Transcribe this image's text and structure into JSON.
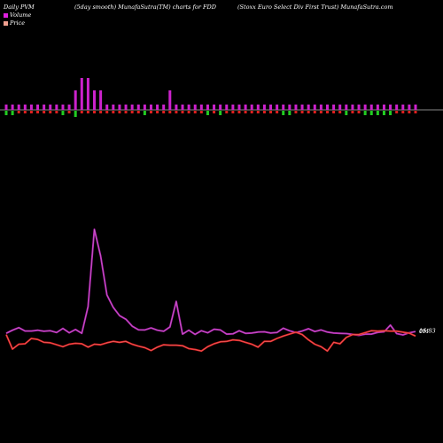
{
  "header": {
    "left": "Daily PVM",
    "center_left": "(5day smooth) MunafaSutra(TM) charts for FDD",
    "center_right": "(Stoxx Euro  Select Div   First Trust) MunafaSutra.com"
  },
  "legend": {
    "volume_label": "Volume",
    "price_label": "Price",
    "volume_color": "#e020e0",
    "price_color": "#f0a090"
  },
  "colors": {
    "background": "#000000",
    "volume_line": "#b020b0",
    "price_line": "#e02020",
    "bar_up": "#cc22cc",
    "bar_down_red": "#e02020",
    "bar_down_green": "#22cc22",
    "baseline": "#888888"
  },
  "labels": {
    "volume_end": "0M",
    "price_end": "16.83"
  },
  "chart_data": {
    "type": "line",
    "title": "(5day smooth) MunafaSutra(TM) charts for FDD",
    "x_count": 66,
    "volume_bars": [
      [
        1,
        1
      ],
      [
        1,
        1
      ],
      [
        1,
        0
      ],
      [
        1,
        0
      ],
      [
        1,
        0
      ],
      [
        1,
        0
      ],
      [
        1,
        0
      ],
      [
        1,
        0
      ],
      [
        1,
        0
      ],
      [
        1,
        1
      ],
      [
        1,
        0
      ],
      [
        2,
        3
      ],
      [
        3,
        0
      ],
      [
        3,
        0
      ],
      [
        2,
        0
      ],
      [
        2,
        0
      ],
      [
        1,
        0
      ],
      [
        1,
        0
      ],
      [
        1,
        0
      ],
      [
        1,
        0
      ],
      [
        1,
        0
      ],
      [
        1,
        0
      ],
      [
        1,
        1
      ],
      [
        1,
        0
      ],
      [
        1,
        0
      ],
      [
        1,
        0
      ],
      [
        2,
        0
      ],
      [
        1,
        0
      ],
      [
        1,
        0
      ],
      [
        1,
        0
      ],
      [
        1,
        0
      ],
      [
        1,
        0
      ],
      [
        1,
        1
      ],
      [
        1,
        0
      ],
      [
        1,
        1
      ],
      [
        1,
        0
      ],
      [
        1,
        0
      ],
      [
        1,
        0
      ],
      [
        1,
        0
      ],
      [
        1,
        0
      ],
      [
        1,
        0
      ],
      [
        1,
        0
      ],
      [
        1,
        0
      ],
      [
        1,
        0
      ],
      [
        1,
        1
      ],
      [
        1,
        1
      ],
      [
        1,
        0
      ],
      [
        1,
        0
      ],
      [
        1,
        0
      ],
      [
        1,
        0
      ],
      [
        1,
        0
      ],
      [
        1,
        0
      ],
      [
        1,
        0
      ],
      [
        1,
        0
      ],
      [
        1,
        1
      ],
      [
        1,
        0
      ],
      [
        1,
        0
      ],
      [
        1,
        1
      ],
      [
        1,
        1
      ],
      [
        1,
        1
      ],
      [
        1,
        1
      ],
      [
        1,
        1
      ],
      [
        1,
        0
      ],
      [
        1,
        0
      ],
      [
        1,
        0
      ],
      [
        1,
        0
      ]
    ],
    "series": [
      {
        "name": "Volume",
        "values": [
          0.43,
          0.55,
          0.65,
          0.52,
          0.52,
          0.55,
          0.51,
          0.53,
          0.46,
          0.62,
          0.45,
          0.58,
          0.43,
          1.47,
          4.47,
          3.43,
          1.92,
          1.44,
          1.12,
          0.98,
          0.71,
          0.57,
          0.56,
          0.64,
          0.55,
          0.51,
          0.68,
          1.67,
          0.4,
          0.55,
          0.39,
          0.53,
          0.45,
          0.59,
          0.56,
          0.4,
          0.41,
          0.53,
          0.43,
          0.44,
          0.48,
          0.49,
          0.44,
          0.46,
          0.63,
          0.53,
          0.46,
          0.52,
          0.61,
          0.5,
          0.56,
          0.48,
          0.44,
          0.43,
          0.42,
          0.39,
          0.35,
          0.4,
          0.4,
          0.47,
          0.49,
          0.75,
          0.42,
          0.37,
          0.45,
          0.5
        ]
      },
      {
        "name": "Price",
        "values": [
          16.86,
          16.56,
          16.66,
          16.67,
          16.78,
          16.76,
          16.7,
          16.69,
          16.65,
          16.61,
          16.66,
          16.68,
          16.67,
          16.6,
          16.66,
          16.65,
          16.69,
          16.72,
          16.7,
          16.72,
          16.66,
          16.62,
          16.59,
          16.53,
          16.6,
          16.65,
          16.64,
          16.64,
          16.63,
          16.57,
          16.55,
          16.52,
          16.61,
          16.67,
          16.71,
          16.72,
          16.75,
          16.74,
          16.7,
          16.66,
          16.6,
          16.72,
          16.72,
          16.78,
          16.83,
          16.87,
          16.91,
          16.86,
          16.75,
          16.66,
          16.61,
          16.52,
          16.7,
          16.67,
          16.8,
          16.86,
          16.86,
          16.9,
          16.94,
          16.93,
          16.94,
          16.93,
          16.93,
          16.91,
          16.89,
          16.83
        ]
      }
    ],
    "xlabel": "",
    "ylabel": "",
    "grid": false,
    "legend_position": "top-left"
  }
}
